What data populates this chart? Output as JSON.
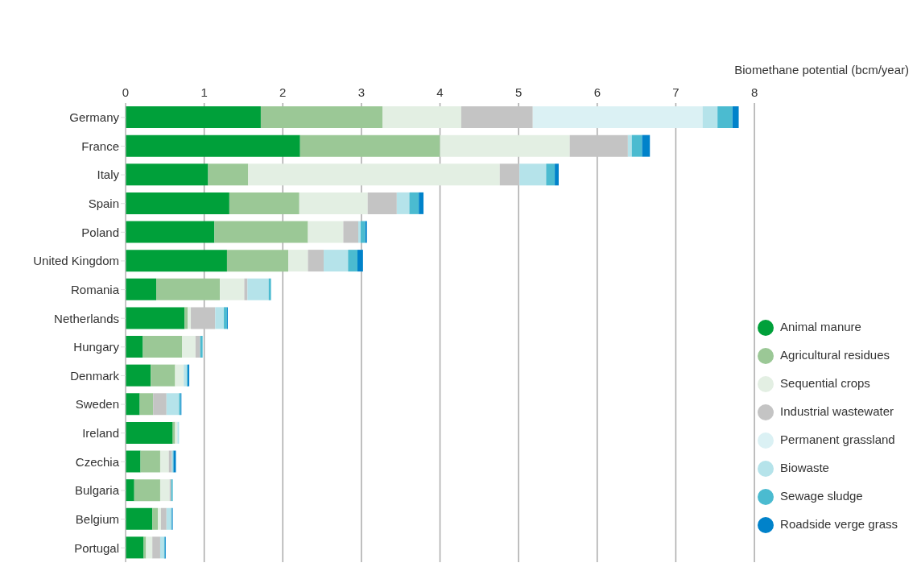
{
  "chart_data": {
    "type": "bar",
    "orientation": "horizontal",
    "stacked": true,
    "xlabel": "Biomethane potential (bcm/year)",
    "categories": [
      "Germany",
      "France",
      "Italy",
      "Spain",
      "Poland",
      "United Kingdom",
      "Romania",
      "Netherlands",
      "Hungary",
      "Denmark",
      "Sweden",
      "Ireland",
      "Czechia",
      "Bulgaria",
      "Belgium",
      "Portugal"
    ],
    "series": [
      {
        "name": "Animal manure",
        "color": "#00a03a",
        "values": [
          1.72,
          2.22,
          1.05,
          1.32,
          1.13,
          1.29,
          0.39,
          0.75,
          0.22,
          0.32,
          0.18,
          0.6,
          0.19,
          0.11,
          0.34,
          0.23
        ]
      },
      {
        "name": "Agricultural residues",
        "color": "#9bc896",
        "values": [
          1.55,
          1.78,
          0.51,
          0.89,
          1.19,
          0.78,
          0.81,
          0.04,
          0.5,
          0.31,
          0.17,
          0.03,
          0.25,
          0.33,
          0.07,
          0.03
        ]
      },
      {
        "name": "Sequential crops",
        "color": "#e3efe3",
        "values": [
          1.0,
          1.65,
          3.2,
          0.87,
          0.45,
          0.25,
          0.31,
          0.04,
          0.17,
          0.11,
          0,
          0.03,
          0.11,
          0.12,
          0.04,
          0.08
        ]
      },
      {
        "name": "Industrial wastewater",
        "color": "#c4c4c4",
        "values": [
          0.91,
          0.74,
          0.25,
          0.37,
          0.19,
          0.2,
          0.04,
          0.31,
          0.06,
          null,
          0.17,
          0,
          0.04,
          0.02,
          0.07,
          0.1
        ]
      },
      {
        "name": "Permanent grassland",
        "color": "#dbf1f4",
        "values": [
          2.16,
          0,
          0,
          0,
          0,
          0,
          0,
          0,
          0,
          0,
          0,
          0,
          0,
          0,
          0,
          0
        ]
      },
      {
        "name": "Biowaste",
        "color": "#b5e3ea",
        "values": [
          0.19,
          0.05,
          0.34,
          0.16,
          0.03,
          0.31,
          0.27,
          0.11,
          null,
          0.04,
          0.16,
          0.02,
          0.01,
          null,
          0.06,
          0.05
        ]
      },
      {
        "name": "Sewage sludge",
        "color": "#4bbbd0",
        "values": [
          0.19,
          0.13,
          0.11,
          0.12,
          0.06,
          0.12,
          0.03,
          0.04,
          0.03,
          0.01,
          0.02,
          0,
          0.01,
          0.02,
          0.01,
          0.01
        ]
      },
      {
        "name": "Roadside verge grass",
        "color": "#0082ca",
        "values": [
          0.08,
          0.1,
          0.05,
          0.06,
          0.02,
          0.07,
          0,
          0.01,
          0,
          0.02,
          0.01,
          0,
          0.03,
          0,
          0.01,
          0.01
        ]
      }
    ],
    "xlim": [
      0,
      8
    ],
    "xticks": [
      0,
      1,
      2,
      3,
      4,
      5,
      6,
      7,
      8
    ],
    "grid": "x",
    "legend": "bottom right",
    "marker": "circle"
  }
}
